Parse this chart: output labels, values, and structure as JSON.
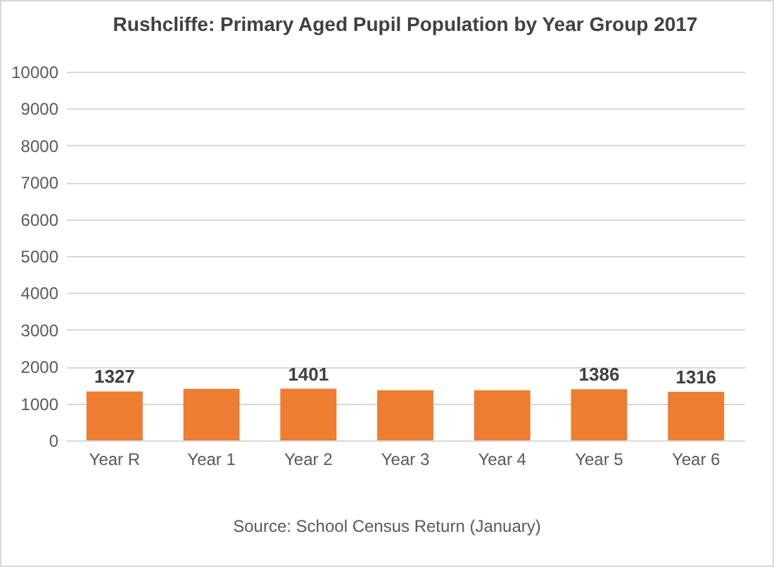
{
  "chart_data": {
    "type": "bar",
    "title": "Rushcliffe: Primary Aged Pupil Population by Year Group 2017",
    "categories": [
      "Year R",
      "Year 1",
      "Year 2",
      "Year 3",
      "Year 4",
      "Year 5",
      "Year 6"
    ],
    "values": [
      1327,
      1400,
      1401,
      1360,
      1360,
      1386,
      1316
    ],
    "value_labels": [
      "1327",
      null,
      "1401",
      null,
      null,
      "1386",
      "1316"
    ],
    "color": "#ed7d31",
    "ylim": [
      0,
      10000
    ],
    "yticks": [
      0,
      1000,
      2000,
      3000,
      4000,
      5000,
      6000,
      7000,
      8000,
      9000,
      10000
    ],
    "grid": "y",
    "annotations": [
      "Source: School Census Return (January)"
    ]
  }
}
